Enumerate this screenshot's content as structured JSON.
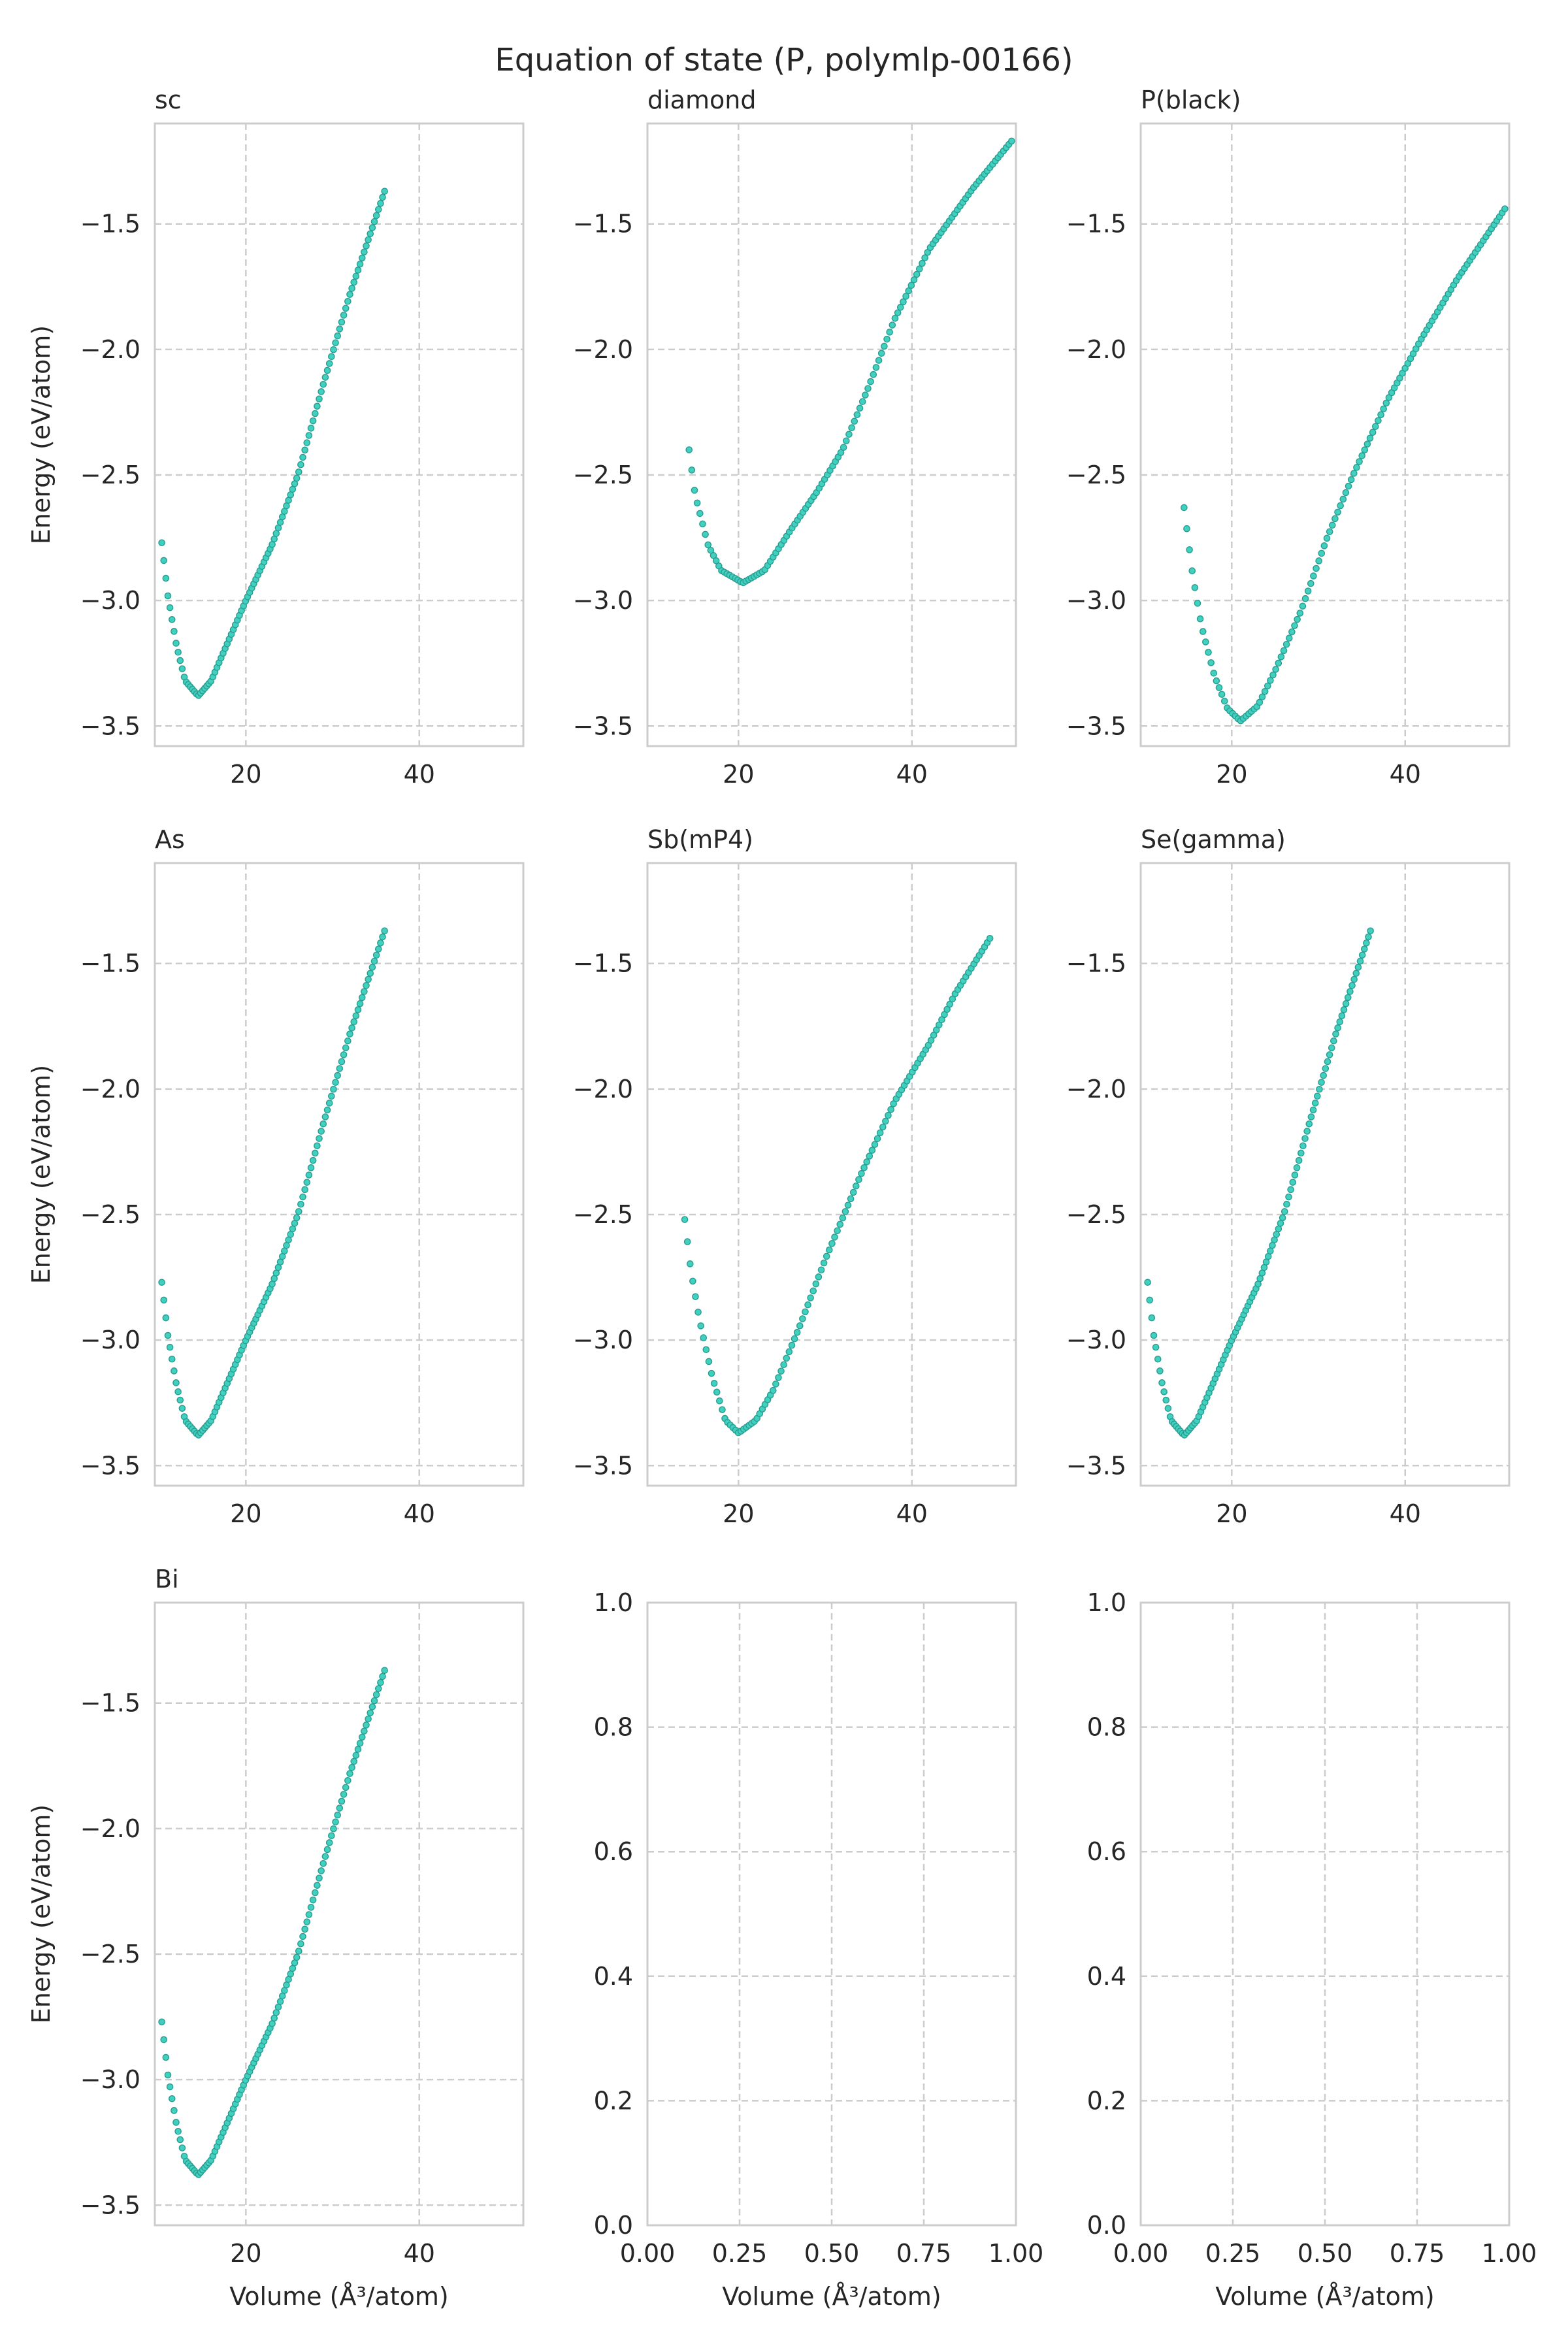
{
  "figure": {
    "title": "Equation of state (P, polymlp-00166)"
  },
  "colors": {
    "marker": "#40d0c0",
    "marker_edge": "#2a9d90",
    "frame": "#cccccc",
    "text": "#262626"
  },
  "chart_data": [
    {
      "type": "scatter",
      "title": "sc",
      "xlabel": "",
      "ylabel": "Energy (eV/atom)",
      "xlim": [
        9.5,
        52
      ],
      "ylim": [
        -3.58,
        -1.1
      ],
      "xticks": [
        20,
        40
      ],
      "xticklabels": [
        "20",
        "40"
      ],
      "yticks": [
        -3.5,
        -3.0,
        -2.5,
        -2.0,
        -1.5
      ],
      "yticklabels": [
        "−3.5",
        "−3.0",
        "−2.5",
        "−2.0",
        "−1.5"
      ],
      "x_range": [
        10.3,
        36.0
      ],
      "n_points": 110,
      "curve": [
        [
          10.3,
          -2.77
        ],
        [
          11.0,
          -2.98
        ],
        [
          12.0,
          -3.18
        ],
        [
          13.0,
          -3.32
        ],
        [
          14.5,
          -3.38
        ],
        [
          16.0,
          -3.32
        ],
        [
          18.0,
          -3.16
        ],
        [
          20.0,
          -3.0
        ],
        [
          23.0,
          -2.78
        ],
        [
          26.0,
          -2.5
        ],
        [
          29.0,
          -2.13
        ],
        [
          32.0,
          -1.78
        ],
        [
          36.0,
          -1.37
        ]
      ]
    },
    {
      "type": "scatter",
      "title": "diamond",
      "xlabel": "",
      "ylabel": "",
      "xlim": [
        9.5,
        52
      ],
      "ylim": [
        -3.58,
        -1.1
      ],
      "xticks": [
        20,
        40
      ],
      "xticklabels": [
        "20",
        "40"
      ],
      "yticks": [
        -3.5,
        -3.0,
        -2.5,
        -2.0,
        -1.5
      ],
      "yticklabels": [
        "−3.5",
        "−3.0",
        "−2.5",
        "−2.0",
        "−1.5"
      ],
      "x_range": [
        14.3,
        51.5
      ],
      "n_points": 120,
      "curve": [
        [
          14.3,
          -2.4
        ],
        [
          15.0,
          -2.58
        ],
        [
          16.5,
          -2.78
        ],
        [
          18.0,
          -2.88
        ],
        [
          20.5,
          -2.93
        ],
        [
          23.0,
          -2.88
        ],
        [
          26.0,
          -2.72
        ],
        [
          29.0,
          -2.57
        ],
        [
          32.0,
          -2.4
        ],
        [
          35.0,
          -2.15
        ],
        [
          38.0,
          -1.88
        ],
        [
          42.0,
          -1.6
        ],
        [
          47.0,
          -1.36
        ],
        [
          51.5,
          -1.17
        ]
      ]
    },
    {
      "type": "scatter",
      "title": "P(black)",
      "xlabel": "",
      "ylabel": "",
      "xlim": [
        9.5,
        52
      ],
      "ylim": [
        -3.58,
        -1.1
      ],
      "xticks": [
        20,
        40
      ],
      "xticklabels": [
        "20",
        "40"
      ],
      "yticks": [
        -3.5,
        -3.0,
        -2.5,
        -2.0,
        -1.5
      ],
      "yticklabels": [
        "−3.5",
        "−3.0",
        "−2.5",
        "−2.0",
        "−1.5"
      ],
      "x_range": [
        14.5,
        51.5
      ],
      "n_points": 120,
      "curve": [
        [
          14.5,
          -2.63
        ],
        [
          15.5,
          -2.9
        ],
        [
          16.5,
          -3.1
        ],
        [
          18.0,
          -3.3
        ],
        [
          19.5,
          -3.43
        ],
        [
          21.0,
          -3.48
        ],
        [
          23.0,
          -3.42
        ],
        [
          25.0,
          -3.28
        ],
        [
          28.0,
          -3.04
        ],
        [
          31.0,
          -2.75
        ],
        [
          34.0,
          -2.5
        ],
        [
          38.0,
          -2.2
        ],
        [
          42.0,
          -1.95
        ],
        [
          46.0,
          -1.72
        ],
        [
          51.5,
          -1.44
        ]
      ]
    },
    {
      "type": "scatter",
      "title": "As",
      "xlabel": "",
      "ylabel": "Energy (eV/atom)",
      "xlim": [
        9.5,
        52
      ],
      "ylim": [
        -3.58,
        -1.1
      ],
      "xticks": [
        20,
        40
      ],
      "xticklabels": [
        "20",
        "40"
      ],
      "yticks": [
        -3.5,
        -3.0,
        -2.5,
        -2.0,
        -1.5
      ],
      "yticklabels": [
        "−3.5",
        "−3.0",
        "−2.5",
        "−2.0",
        "−1.5"
      ],
      "x_range": [
        10.3,
        36.0
      ],
      "n_points": 110,
      "curve": [
        [
          10.3,
          -2.77
        ],
        [
          11.0,
          -2.98
        ],
        [
          12.0,
          -3.18
        ],
        [
          13.0,
          -3.32
        ],
        [
          14.5,
          -3.38
        ],
        [
          16.0,
          -3.32
        ],
        [
          18.0,
          -3.16
        ],
        [
          20.0,
          -3.0
        ],
        [
          23.0,
          -2.78
        ],
        [
          26.0,
          -2.5
        ],
        [
          29.0,
          -2.13
        ],
        [
          32.0,
          -1.78
        ],
        [
          36.0,
          -1.37
        ]
      ]
    },
    {
      "type": "scatter",
      "title": "Sb(mP4)",
      "xlabel": "",
      "ylabel": "",
      "xlim": [
        9.5,
        52
      ],
      "ylim": [
        -3.58,
        -1.1
      ],
      "xticks": [
        20,
        40
      ],
      "xticklabels": [
        "20",
        "40"
      ],
      "yticks": [
        -3.5,
        -3.0,
        -2.5,
        -2.0,
        -1.5
      ],
      "yticklabels": [
        "−3.5",
        "−3.0",
        "−2.5",
        "−2.0",
        "−1.5"
      ],
      "x_range": [
        13.8,
        49.0
      ],
      "n_points": 115,
      "curve": [
        [
          13.8,
          -2.52
        ],
        [
          14.5,
          -2.72
        ],
        [
          15.5,
          -2.92
        ],
        [
          17.0,
          -3.15
        ],
        [
          18.5,
          -3.32
        ],
        [
          20.0,
          -3.37
        ],
        [
          22.0,
          -3.32
        ],
        [
          24.0,
          -3.2
        ],
        [
          27.0,
          -2.95
        ],
        [
          30.0,
          -2.68
        ],
        [
          34.0,
          -2.35
        ],
        [
          38.0,
          -2.05
        ],
        [
          42.0,
          -1.82
        ],
        [
          45.0,
          -1.62
        ],
        [
          49.0,
          -1.4
        ]
      ]
    },
    {
      "type": "scatter",
      "title": "Se(gamma)",
      "xlabel": "",
      "ylabel": "",
      "xlim": [
        9.5,
        52
      ],
      "ylim": [
        -3.58,
        -1.1
      ],
      "xticks": [
        20,
        40
      ],
      "xticklabels": [
        "20",
        "40"
      ],
      "yticks": [
        -3.5,
        -3.0,
        -2.5,
        -2.0,
        -1.5
      ],
      "yticklabels": [
        "−3.5",
        "−3.0",
        "−2.5",
        "−2.0",
        "−1.5"
      ],
      "x_range": [
        10.3,
        36.0
      ],
      "n_points": 110,
      "curve": [
        [
          10.3,
          -2.77
        ],
        [
          11.0,
          -2.98
        ],
        [
          12.0,
          -3.18
        ],
        [
          13.0,
          -3.32
        ],
        [
          14.5,
          -3.38
        ],
        [
          16.0,
          -3.32
        ],
        [
          18.0,
          -3.16
        ],
        [
          20.0,
          -3.0
        ],
        [
          23.0,
          -2.78
        ],
        [
          26.0,
          -2.5
        ],
        [
          29.0,
          -2.13
        ],
        [
          32.0,
          -1.78
        ],
        [
          36.0,
          -1.37
        ]
      ]
    },
    {
      "type": "scatter",
      "title": "Bi",
      "xlabel": "Volume (Å³/atom)",
      "ylabel": "Energy (eV/atom)",
      "xlim": [
        9.5,
        52
      ],
      "ylim": [
        -3.58,
        -1.1
      ],
      "xticks": [
        20,
        40
      ],
      "xticklabels": [
        "20",
        "40"
      ],
      "yticks": [
        -3.5,
        -3.0,
        -2.5,
        -2.0,
        -1.5
      ],
      "yticklabels": [
        "−3.5",
        "−3.0",
        "−2.5",
        "−2.0",
        "−1.5"
      ],
      "x_range": [
        10.3,
        36.0
      ],
      "n_points": 110,
      "curve": [
        [
          10.3,
          -2.77
        ],
        [
          11.0,
          -2.98
        ],
        [
          12.0,
          -3.18
        ],
        [
          13.0,
          -3.32
        ],
        [
          14.5,
          -3.38
        ],
        [
          16.0,
          -3.32
        ],
        [
          18.0,
          -3.16
        ],
        [
          20.0,
          -3.0
        ],
        [
          23.0,
          -2.78
        ],
        [
          26.0,
          -2.5
        ],
        [
          29.0,
          -2.13
        ],
        [
          32.0,
          -1.78
        ],
        [
          36.0,
          -1.37
        ]
      ]
    },
    {
      "type": "scatter",
      "title": "",
      "xlabel": "Volume (Å³/atom)",
      "ylabel": "",
      "xlim": [
        0,
        1
      ],
      "ylim": [
        0,
        1
      ],
      "xticks": [
        0,
        0.25,
        0.5,
        0.75,
        1.0
      ],
      "xticklabels": [
        "0.00",
        "0.25",
        "0.50",
        "0.75",
        "1.00"
      ],
      "yticks": [
        0,
        0.2,
        0.4,
        0.6,
        0.8,
        1.0
      ],
      "yticklabels": [
        "0.0",
        "0.2",
        "0.4",
        "0.6",
        "0.8",
        "1.0"
      ],
      "x_range": null,
      "n_points": 0,
      "curve": []
    },
    {
      "type": "scatter",
      "title": "",
      "xlabel": "Volume (Å³/atom)",
      "ylabel": "",
      "xlim": [
        0,
        1
      ],
      "ylim": [
        0,
        1
      ],
      "xticks": [
        0,
        0.25,
        0.5,
        0.75,
        1.0
      ],
      "xticklabels": [
        "0.00",
        "0.25",
        "0.50",
        "0.75",
        "1.00"
      ],
      "yticks": [
        0,
        0.2,
        0.4,
        0.6,
        0.8,
        1.0
      ],
      "yticklabels": [
        "0.0",
        "0.2",
        "0.4",
        "0.6",
        "0.8",
        "1.0"
      ],
      "x_range": null,
      "n_points": 0,
      "curve": []
    }
  ]
}
